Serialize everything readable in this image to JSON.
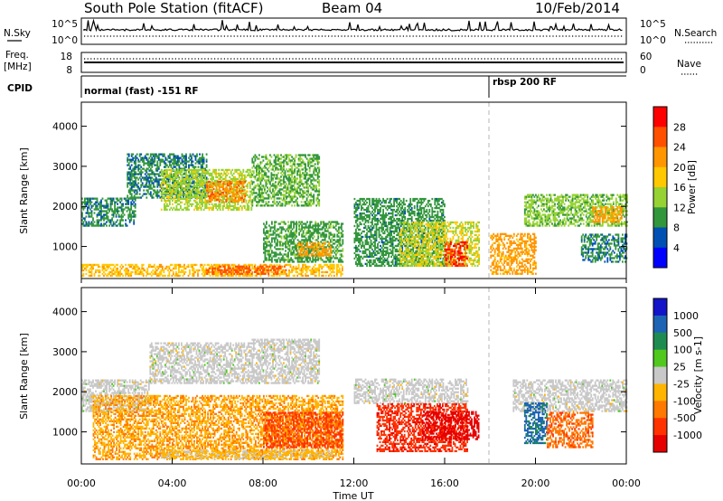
{
  "header": {
    "station": "South Pole Station (fitACF)",
    "beam": "Beam 04",
    "date": "10/Feb/2014"
  },
  "top_panels": {
    "nsky_label": "N.Sky",
    "nsky_ticks": [
      "10^5",
      "10^0"
    ],
    "nsearch_label": "N.Search",
    "nsearch_ticks": [
      "10^5",
      "10^0"
    ],
    "freq_label": "Freq.",
    "freq_unit": "[MHz]",
    "freq_ticks": [
      "18",
      "8"
    ],
    "nave_label": "Nave",
    "nave_ticks": [
      "60",
      "0"
    ],
    "cpid_label": "CPID",
    "cpid_segments": [
      {
        "label": "normal (fast) -151 RF",
        "start_hour": 0
      },
      {
        "label": "rbsp 200 RF",
        "start_hour": 18
      }
    ]
  },
  "colorbars": {
    "power": {
      "title": "Power [dB]",
      "ticks": [
        "28",
        "24",
        "20",
        "16",
        "12",
        "8",
        "4"
      ],
      "colors": [
        "#ff0000",
        "#ff5000",
        "#ff9600",
        "#ffc800",
        "#96d232",
        "#32963c",
        "#0050b4",
        "#0000ff"
      ]
    },
    "velocity": {
      "title": "Velocity [m s-1]",
      "ticks": [
        "1000",
        "500",
        "100",
        "25",
        "-25",
        "-100",
        "-500",
        "-1000"
      ],
      "colors": [
        "#1414c8",
        "#1e64b4",
        "#1e8c50",
        "#50c81e",
        "#c8c8c8",
        "#ffb400",
        "#ff7800",
        "#ff3200",
        "#e60000"
      ]
    }
  },
  "x_axis": {
    "label": "Time UT",
    "tick_labels": [
      "00:00",
      "04:00",
      "08:00",
      "12:00",
      "16:00",
      "20:00",
      "00:00"
    ]
  },
  "chart_data": [
    {
      "type": "heatmap",
      "name": "power",
      "ylabel": "Slant Range [km]",
      "xlabel": "Time UT",
      "xlim": [
        0,
        24
      ],
      "ylim": [
        200,
        4600
      ],
      "y_ticks": [
        1000,
        2000,
        3000,
        4000
      ],
      "x_ticks": [
        "00:00",
        "04:00",
        "08:00",
        "12:00",
        "16:00",
        "20:00",
        "00:00"
      ],
      "colorbar": "Power [dB]",
      "clim": [
        0,
        30
      ],
      "cpid_change_hour": 18,
      "echo_regions_dB": [
        {
          "t": [
            0.0,
            2.4
          ],
          "r": [
            1500,
            2200
          ],
          "value": 8
        },
        {
          "t": [
            2.0,
            5.5
          ],
          "r": [
            2200,
            3300
          ],
          "value": 8
        },
        {
          "t": [
            3.5,
            7.5
          ],
          "r": [
            1900,
            2900
          ],
          "value": 14
        },
        {
          "t": [
            5.5,
            7.2
          ],
          "r": [
            2100,
            2600
          ],
          "value": 22
        },
        {
          "t": [
            7.5,
            10.5
          ],
          "r": [
            2000,
            3300
          ],
          "value": 11
        },
        {
          "t": [
            0.0,
            11.5
          ],
          "r": [
            250,
            550
          ],
          "value": 18
        },
        {
          "t": [
            5.5,
            9.0
          ],
          "r": [
            300,
            500
          ],
          "value": 24
        },
        {
          "t": [
            8.0,
            11.5
          ],
          "r": [
            600,
            1600
          ],
          "value": 10
        },
        {
          "t": [
            9.5,
            11.0
          ],
          "r": [
            750,
            1100
          ],
          "value": 20
        },
        {
          "t": [
            12.0,
            16.0
          ],
          "r": [
            500,
            2200
          ],
          "value": 9
        },
        {
          "t": [
            14.0,
            17.5
          ],
          "r": [
            500,
            1600
          ],
          "value": 15
        },
        {
          "t": [
            16.0,
            17.0
          ],
          "r": [
            500,
            1100
          ],
          "value": 26
        },
        {
          "t": [
            18.0,
            20.0
          ],
          "r": [
            300,
            1300
          ],
          "value": 20
        },
        {
          "t": [
            19.5,
            24.0
          ],
          "r": [
            1500,
            2300
          ],
          "value": 12
        },
        {
          "t": [
            22.5,
            23.8
          ],
          "r": [
            1600,
            2000
          ],
          "value": 20
        },
        {
          "t": [
            22.0,
            24.0
          ],
          "r": [
            600,
            1300
          ],
          "value": 8
        }
      ]
    },
    {
      "type": "heatmap",
      "name": "velocity",
      "ylabel": "Slant Range [km]",
      "xlabel": "Time UT",
      "xlim": [
        0,
        24
      ],
      "ylim": [
        200,
        4600
      ],
      "y_ticks": [
        1000,
        2000,
        3000,
        4000
      ],
      "x_ticks": [
        "00:00",
        "04:00",
        "08:00",
        "12:00",
        "16:00",
        "20:00",
        "00:00"
      ],
      "colorbar": "Velocity [m s-1]",
      "clim": [
        -1000,
        1000
      ],
      "cpid_change_hour": 18,
      "echo_regions_ms": [
        {
          "t": [
            0.0,
            3.0
          ],
          "r": [
            1500,
            2300
          ],
          "value": 0
        },
        {
          "t": [
            3.0,
            7.5
          ],
          "r": [
            2200,
            3200
          ],
          "value": 0
        },
        {
          "t": [
            7.5,
            10.5
          ],
          "r": [
            2200,
            3300
          ],
          "value": 0
        },
        {
          "t": [
            12.0,
            17.0
          ],
          "r": [
            1700,
            2300
          ],
          "value": 0
        },
        {
          "t": [
            19.0,
            24.0
          ],
          "r": [
            1500,
            2300
          ],
          "value": 0
        },
        {
          "t": [
            0.5,
            11.5
          ],
          "r": [
            300,
            1900
          ],
          "value": -300
        },
        {
          "t": [
            3.5,
            11.0
          ],
          "r": [
            320,
            520
          ],
          "value": -150
        },
        {
          "t": [
            8.0,
            11.5
          ],
          "r": [
            600,
            1500
          ],
          "value": -600
        },
        {
          "t": [
            13.0,
            17.0
          ],
          "r": [
            500,
            1700
          ],
          "value": -700
        },
        {
          "t": [
            15.0,
            17.5
          ],
          "r": [
            800,
            1500
          ],
          "value": -900
        },
        {
          "t": [
            19.5,
            20.5
          ],
          "r": [
            700,
            1700
          ],
          "value": 600
        },
        {
          "t": [
            20.5,
            22.5
          ],
          "r": [
            600,
            1500
          ],
          "value": -500
        }
      ]
    }
  ]
}
